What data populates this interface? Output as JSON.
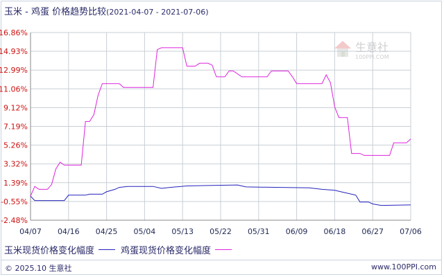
{
  "title": {
    "main": "玉米 - 鸡蛋  价格趋势比较",
    "range": "(2021-04-07 - 2021-07-06)"
  },
  "watermark": {
    "text": "生意社",
    "sub": "100PPI.COM"
  },
  "footer": {
    "copyright": "© 2025.10 生意社",
    "url": "www.100PPI.com"
  },
  "colors": {
    "corn": "#2222bb",
    "egg": "#dd22dd",
    "grid": "#c9cfd6",
    "ytick": "#cc1111"
  },
  "chart_data": {
    "type": "line",
    "ylim": [
      -2.48,
      16.86
    ],
    "yticks": [
      "16.86%",
      "14.93%",
      "12.99%",
      "11.06%",
      "9.12%",
      "7.19%",
      "5.26%",
      "3.32%",
      "1.39%",
      "-0.55%",
      "-2.48%"
    ],
    "ytick_values": [
      16.86,
      14.93,
      12.99,
      11.06,
      9.12,
      7.19,
      5.26,
      3.32,
      1.39,
      -0.55,
      -2.48
    ],
    "xlim": [
      "2021-04-07",
      "2021-07-06"
    ],
    "xticks": [
      "04/07",
      "04/16",
      "04/25",
      "05/04",
      "05/13",
      "05/22",
      "05/31",
      "06/09",
      "06/18",
      "06/27",
      "07/06"
    ],
    "xtick_dates": [
      "2021-04-07",
      "2021-04-16",
      "2021-04-25",
      "2021-05-04",
      "2021-05-13",
      "2021-05-22",
      "2021-05-31",
      "2021-06-09",
      "2021-06-18",
      "2021-06-27",
      "2021-07-06"
    ],
    "grid": true,
    "legend_position": "bottom-left",
    "series": [
      {
        "name": "玉米现货价格变化幅度",
        "color": "#2222bb",
        "points": [
          [
            "2021-04-07",
            0.0
          ],
          [
            "2021-04-08",
            -0.45
          ],
          [
            "2021-04-15",
            -0.45
          ],
          [
            "2021-04-16",
            0.1
          ],
          [
            "2021-04-20",
            0.1
          ],
          [
            "2021-04-21",
            0.2
          ],
          [
            "2021-04-24",
            0.2
          ],
          [
            "2021-04-25",
            0.45
          ],
          [
            "2021-04-27",
            0.7
          ],
          [
            "2021-04-28",
            0.9
          ],
          [
            "2021-04-30",
            1.0
          ],
          [
            "2021-05-06",
            1.0
          ],
          [
            "2021-05-08",
            0.8
          ],
          [
            "2021-05-10",
            0.9
          ],
          [
            "2021-05-14",
            1.05
          ],
          [
            "2021-05-20",
            1.1
          ],
          [
            "2021-05-26",
            1.15
          ],
          [
            "2021-05-28",
            0.95
          ],
          [
            "2021-06-12",
            0.85
          ],
          [
            "2021-06-15",
            0.7
          ],
          [
            "2021-06-18",
            0.6
          ],
          [
            "2021-06-20",
            0.4
          ],
          [
            "2021-06-23",
            0.1
          ],
          [
            "2021-06-24",
            -0.6
          ],
          [
            "2021-06-26",
            -0.6
          ],
          [
            "2021-06-27",
            -0.8
          ],
          [
            "2021-06-29",
            -0.95
          ],
          [
            "2021-07-06",
            -0.9
          ]
        ]
      },
      {
        "name": "鸡蛋现货价格变化幅度",
        "color": "#dd22dd",
        "points": [
          [
            "2021-04-07",
            0.0
          ],
          [
            "2021-04-08",
            1.0
          ],
          [
            "2021-04-09",
            0.7
          ],
          [
            "2021-04-11",
            0.7
          ],
          [
            "2021-04-12",
            1.2
          ],
          [
            "2021-04-13",
            2.8
          ],
          [
            "2021-04-14",
            3.5
          ],
          [
            "2021-04-15",
            3.2
          ],
          [
            "2021-04-18",
            3.2
          ],
          [
            "2021-04-19",
            3.2
          ],
          [
            "2021-04-20",
            7.7
          ],
          [
            "2021-04-21",
            7.7
          ],
          [
            "2021-04-22",
            8.4
          ],
          [
            "2021-04-23",
            10.4
          ],
          [
            "2021-04-24",
            11.6
          ],
          [
            "2021-04-28",
            11.6
          ],
          [
            "2021-04-29",
            11.2
          ],
          [
            "2021-05-06",
            11.2
          ],
          [
            "2021-05-07",
            15.1
          ],
          [
            "2021-05-08",
            15.3
          ],
          [
            "2021-05-13",
            15.3
          ],
          [
            "2021-05-14",
            13.4
          ],
          [
            "2021-05-16",
            13.4
          ],
          [
            "2021-05-17",
            13.7
          ],
          [
            "2021-05-19",
            13.7
          ],
          [
            "2021-05-20",
            13.5
          ],
          [
            "2021-05-21",
            12.3
          ],
          [
            "2021-05-23",
            12.3
          ],
          [
            "2021-05-24",
            12.9
          ],
          [
            "2021-05-25",
            12.9
          ],
          [
            "2021-05-27",
            12.3
          ],
          [
            "2021-06-02",
            12.3
          ],
          [
            "2021-06-03",
            12.9
          ],
          [
            "2021-06-07",
            12.9
          ],
          [
            "2021-06-08",
            12.3
          ],
          [
            "2021-06-09",
            11.6
          ],
          [
            "2021-06-15",
            11.6
          ],
          [
            "2021-06-16",
            12.5
          ],
          [
            "2021-06-17",
            11.7
          ],
          [
            "2021-06-18",
            9.2
          ],
          [
            "2021-06-19",
            8.1
          ],
          [
            "2021-06-21",
            8.1
          ],
          [
            "2021-06-22",
            4.4
          ],
          [
            "2021-06-24",
            4.4
          ],
          [
            "2021-06-25",
            4.2
          ],
          [
            "2021-07-01",
            4.2
          ],
          [
            "2021-07-02",
            5.5
          ],
          [
            "2021-07-05",
            5.5
          ],
          [
            "2021-07-06",
            5.9
          ]
        ]
      }
    ]
  }
}
